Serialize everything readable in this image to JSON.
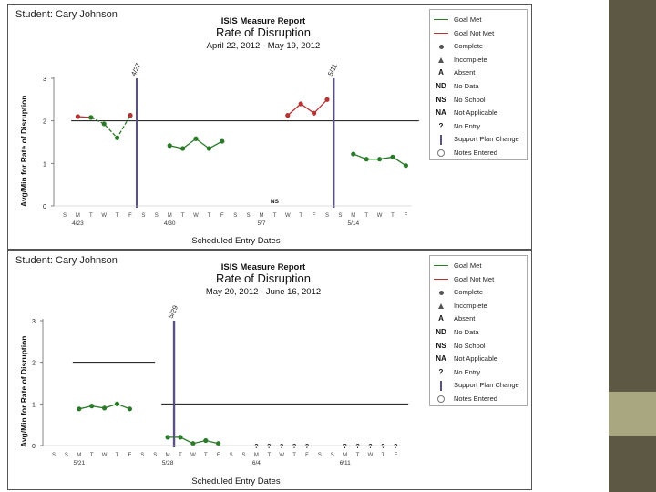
{
  "legend": [
    {
      "symbol": "goal-met-line",
      "label": "Goal Met"
    },
    {
      "symbol": "goal-not-met-line",
      "label": "Goal Not Met"
    },
    {
      "symbol": "complete-dot",
      "label": "Complete"
    },
    {
      "symbol": "incomplete-triangle",
      "label": "Incomplete"
    },
    {
      "symbol": "A",
      "label": "Absent"
    },
    {
      "symbol": "ND",
      "label": "No Data"
    },
    {
      "symbol": "NS",
      "label": "No School"
    },
    {
      "symbol": "NA",
      "label": "Not Applicable"
    },
    {
      "symbol": "?",
      "label": "No Entry"
    },
    {
      "symbol": "support-bar",
      "label": "Support Plan Change"
    },
    {
      "symbol": "notes-circle",
      "label": "Notes Entered"
    }
  ],
  "colors": {
    "met": "#2a7a2a",
    "not_met": "#b83232",
    "support": "#5a5285",
    "side": "#5c5843",
    "accent": "#a9a780"
  },
  "chart_data": [
    {
      "type": "line",
      "student": "Student: Cary Johnson",
      "report": "ISIS Measure Report",
      "title": "Rate of Disruption",
      "subtitle": "April 22, 2012 - May 19, 2012",
      "xlabel": "Scheduled Entry Dates",
      "ylabel": "Avg/Min for Rate of Disruption",
      "ylim": [
        0,
        3
      ],
      "yticks": [
        0,
        1,
        2,
        3
      ],
      "day_letters": [
        "S",
        "M",
        "T",
        "W",
        "T",
        "F",
        "S",
        "S",
        "M",
        "T",
        "W",
        "T",
        "F",
        "S",
        "S",
        "M",
        "T",
        "W",
        "T",
        "F",
        "S",
        "S",
        "M",
        "T",
        "W",
        "T",
        "F"
      ],
      "week_labels": [
        {
          "day": 1,
          "label": "4/23"
        },
        {
          "day": 8,
          "label": "4/30"
        },
        {
          "day": 15,
          "label": "5/7"
        },
        {
          "day": 22,
          "label": "5/14"
        }
      ],
      "support_changes": [
        {
          "day": 5.5,
          "label": "4/27"
        },
        {
          "day": 20.5,
          "label": "5/11"
        }
      ],
      "goal_segments": [
        {
          "from": 0.5,
          "to": 27,
          "value": 2.0
        }
      ],
      "no_school": [
        {
          "day": 16,
          "label": "NS"
        }
      ],
      "no_entry": [],
      "series": [
        {
          "status": "not_met",
          "points": [
            [
              1,
              2.1
            ],
            [
              2,
              2.08
            ]
          ]
        },
        {
          "status": "met",
          "points": [
            [
              2,
              2.08
            ],
            [
              3,
              1.93
            ],
            [
              4,
              1.6
            ],
            [
              5,
              2.13
            ]
          ],
          "dashed": true
        },
        {
          "status": "not_met",
          "points": [
            [
              5,
              2.13
            ]
          ]
        },
        {
          "status": "met",
          "points": [
            [
              8,
              1.42
            ],
            [
              9,
              1.35
            ],
            [
              10,
              1.58
            ],
            [
              11,
              1.35
            ],
            [
              12,
              1.52
            ]
          ]
        },
        {
          "status": "not_met",
          "points": [
            [
              17,
              2.13
            ],
            [
              18,
              2.4
            ],
            [
              19,
              2.18
            ],
            [
              20,
              2.5
            ]
          ]
        },
        {
          "status": "met",
          "points": [
            [
              22,
              1.22
            ],
            [
              23,
              1.1
            ],
            [
              24,
              1.1
            ],
            [
              25,
              1.15
            ],
            [
              26,
              0.95
            ]
          ]
        }
      ]
    },
    {
      "type": "line",
      "student": "Student: Cary Johnson",
      "report": "ISIS Measure Report",
      "title": "Rate of Disruption",
      "subtitle": "May 20, 2012 - June 16, 2012",
      "xlabel": "Scheduled Entry Dates",
      "ylabel": "Avg/Min for Rate of Disruption",
      "ylim": [
        0,
        3
      ],
      "yticks": [
        0,
        1,
        2,
        3
      ],
      "day_letters": [
        "S",
        "S",
        "M",
        "T",
        "W",
        "T",
        "F",
        "S",
        "S",
        "M",
        "T",
        "W",
        "T",
        "F",
        "S",
        "S",
        "M",
        "T",
        "W",
        "T",
        "F",
        "S",
        "S",
        "M",
        "T",
        "W",
        "T",
        "F"
      ],
      "week_labels": [
        {
          "day": 2,
          "label": "5/21"
        },
        {
          "day": 9,
          "label": "5/28"
        },
        {
          "day": 16,
          "label": "6/4"
        },
        {
          "day": 23,
          "label": "6/11"
        }
      ],
      "support_changes": [
        {
          "day": 9.5,
          "label": "5/29"
        }
      ],
      "goal_segments": [
        {
          "from": 1.5,
          "to": 8,
          "value": 2.0
        },
        {
          "from": 8.5,
          "to": 28,
          "value": 1.0
        }
      ],
      "no_school": [],
      "no_entry": [
        16,
        17,
        18,
        19,
        20,
        23,
        24,
        25,
        26,
        27
      ],
      "series": [
        {
          "status": "met",
          "points": [
            [
              2,
              0.88
            ],
            [
              3,
              0.95
            ],
            [
              4,
              0.9
            ],
            [
              5,
              1.0
            ],
            [
              6,
              0.88
            ]
          ]
        },
        {
          "status": "met",
          "points": [
            [
              9,
              0.2
            ],
            [
              10,
              0.2
            ],
            [
              11,
              0.05
            ],
            [
              12,
              0.12
            ],
            [
              13,
              0.05
            ]
          ]
        }
      ]
    }
  ]
}
